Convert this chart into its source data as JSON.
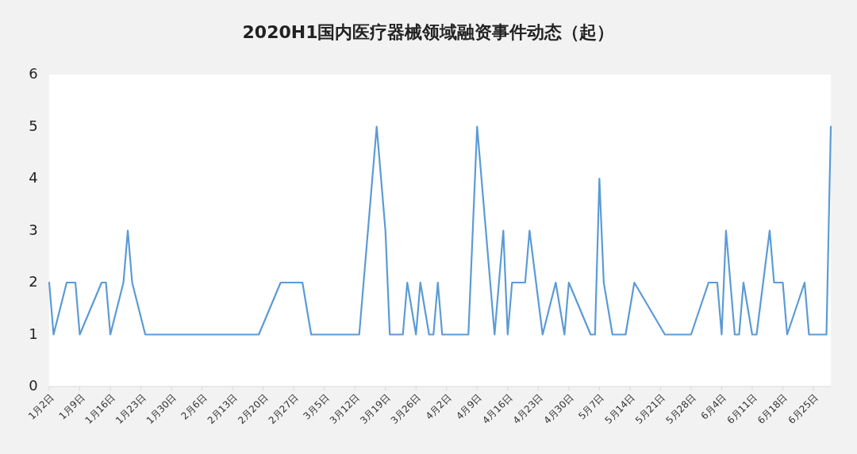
{
  "chart_data": {
    "type": "line",
    "title": "2020H1国内医疗器械领域融资事件动态（起）",
    "x": [
      "2020-01-02",
      "2020-01-03",
      "2020-01-06",
      "2020-01-08",
      "2020-01-09",
      "2020-01-14",
      "2020-01-15",
      "2020-01-16",
      "2020-01-19",
      "2020-01-20",
      "2020-01-21",
      "2020-01-24",
      "2020-02-19",
      "2020-02-24",
      "2020-02-29",
      "2020-03-02",
      "2020-03-13",
      "2020-03-17",
      "2020-03-19",
      "2020-03-20",
      "2020-03-23",
      "2020-03-24",
      "2020-03-26",
      "2020-03-27",
      "2020-03-29",
      "2020-03-30",
      "2020-03-31",
      "2020-04-01",
      "2020-04-07",
      "2020-04-09",
      "2020-04-13",
      "2020-04-15",
      "2020-04-16",
      "2020-04-17",
      "2020-04-20",
      "2020-04-21",
      "2020-04-24",
      "2020-04-27",
      "2020-04-29",
      "2020-04-30",
      "2020-05-05",
      "2020-05-06",
      "2020-05-07",
      "2020-05-08",
      "2020-05-10",
      "2020-05-13",
      "2020-05-15",
      "2020-05-22",
      "2020-05-28",
      "2020-06-01",
      "2020-06-03",
      "2020-06-04",
      "2020-06-05",
      "2020-06-07",
      "2020-06-08",
      "2020-06-09",
      "2020-06-11",
      "2020-06-12",
      "2020-06-15",
      "2020-06-16",
      "2020-06-18",
      "2020-06-19",
      "2020-06-23",
      "2020-06-24",
      "2020-06-28",
      "2020-06-29"
    ],
    "series": [
      {
        "color": "#5b9bd5",
        "values": [
          2,
          1,
          2,
          2,
          1,
          2,
          2,
          1,
          2,
          3,
          2,
          1,
          1,
          2,
          2,
          1,
          1,
          5,
          3,
          1,
          1,
          2,
          1,
          2,
          1,
          1,
          2,
          1,
          1,
          5,
          1,
          3,
          1,
          2,
          2,
          3,
          1,
          2,
          1,
          2,
          1,
          1,
          4,
          2,
          1,
          1,
          2,
          1,
          1,
          2,
          2,
          1,
          3,
          1,
          1,
          2,
          1,
          1,
          3,
          2,
          2,
          1,
          2,
          1,
          1,
          5
        ]
      }
    ],
    "xlim": [
      "2020-01-02",
      "2020-06-29"
    ],
    "xticks": [
      {
        "value": "2020-01-02",
        "label": "1月2日"
      },
      {
        "value": "2020-01-09",
        "label": "1月9日"
      },
      {
        "value": "2020-01-16",
        "label": "1月16日"
      },
      {
        "value": "2020-01-23",
        "label": "1月23日"
      },
      {
        "value": "2020-01-30",
        "label": "1月30日"
      },
      {
        "value": "2020-02-06",
        "label": "2月6日"
      },
      {
        "value": "2020-02-13",
        "label": "2月13日"
      },
      {
        "value": "2020-02-20",
        "label": "2月20日"
      },
      {
        "value": "2020-02-27",
        "label": "2月27日"
      },
      {
        "value": "2020-03-05",
        "label": "3月5日"
      },
      {
        "value": "2020-03-12",
        "label": "3月12日"
      },
      {
        "value": "2020-03-19",
        "label": "3月19日"
      },
      {
        "value": "2020-03-26",
        "label": "3月26日"
      },
      {
        "value": "2020-04-02",
        "label": "4月2日"
      },
      {
        "value": "2020-04-09",
        "label": "4月9日"
      },
      {
        "value": "2020-04-16",
        "label": "4月16日"
      },
      {
        "value": "2020-04-23",
        "label": "4月23日"
      },
      {
        "value": "2020-04-30",
        "label": "4月30日"
      },
      {
        "value": "2020-05-07",
        "label": "5月7日"
      },
      {
        "value": "2020-05-14",
        "label": "5月14日"
      },
      {
        "value": "2020-05-21",
        "label": "5月21日"
      },
      {
        "value": "2020-05-28",
        "label": "5月28日"
      },
      {
        "value": "2020-06-04",
        "label": "6月4日"
      },
      {
        "value": "2020-06-11",
        "label": "6月11日"
      },
      {
        "value": "2020-06-18",
        "label": "6月18日"
      },
      {
        "value": "2020-06-25",
        "label": "6月25日"
      }
    ],
    "ylim": [
      0,
      6
    ],
    "yticks": [
      0,
      1,
      2,
      3,
      4,
      5,
      6
    ],
    "grid": false,
    "marker": "none",
    "line_style": "solid"
  }
}
